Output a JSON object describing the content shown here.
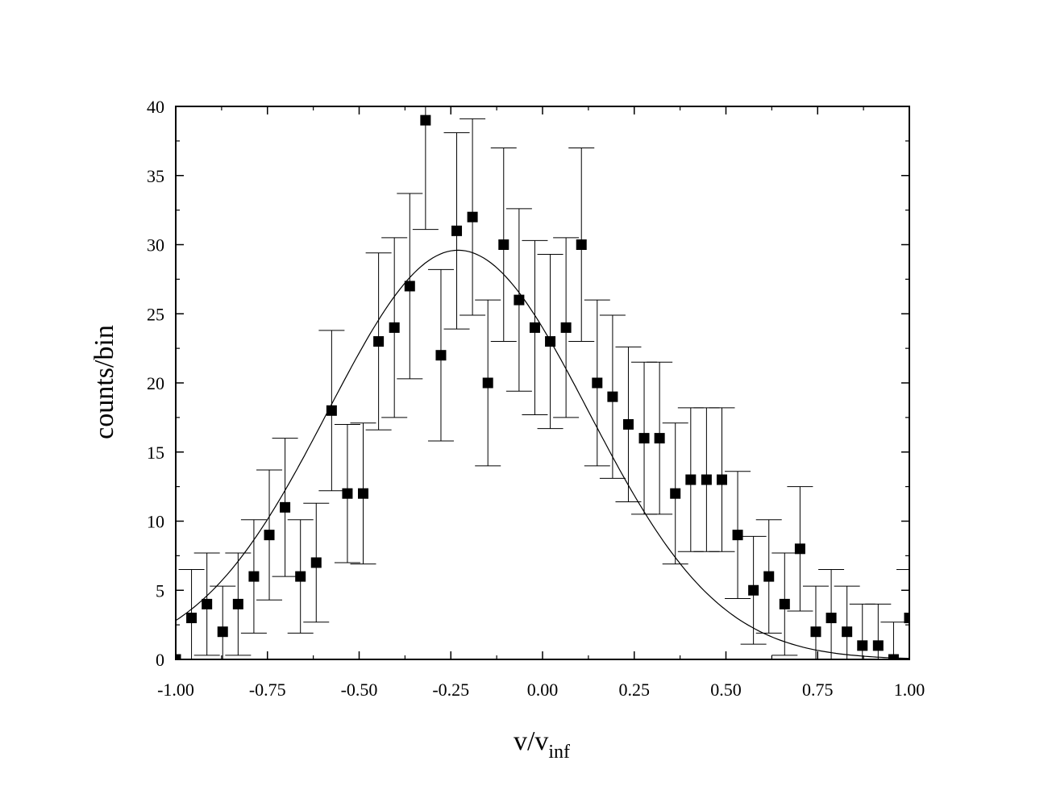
{
  "chart_data": {
    "type": "scatter",
    "xlabel": "v/v",
    "xlabel_subscript": "inf",
    "ylabel": "counts/bin",
    "xlim": [
      -1.0,
      1.0
    ],
    "ylim": [
      0,
      40
    ],
    "x_ticks": [
      "-1.00",
      "-0.75",
      "-0.50",
      "-0.25",
      "0.00",
      "0.25",
      "0.50",
      "0.75",
      "1.00"
    ],
    "y_ticks": [
      "0",
      "5",
      "10",
      "15",
      "20",
      "25",
      "30",
      "35",
      "40"
    ],
    "grid": false,
    "legend": "none",
    "marker": "filled-square",
    "color": "#000000",
    "series": [
      {
        "type": "scatter-with-error-bars",
        "points": [
          {
            "x": -1.0,
            "y": 0,
            "err": 0
          },
          {
            "x": -0.957,
            "y": 3,
            "err": 3.5
          },
          {
            "x": -0.915,
            "y": 4,
            "err": 3.7
          },
          {
            "x": -0.872,
            "y": 2,
            "err": 3.3
          },
          {
            "x": -0.83,
            "y": 4,
            "err": 3.7
          },
          {
            "x": -0.787,
            "y": 6,
            "err": 4.1
          },
          {
            "x": -0.745,
            "y": 9,
            "err": 4.7
          },
          {
            "x": -0.702,
            "y": 11,
            "err": 5.0
          },
          {
            "x": -0.66,
            "y": 6,
            "err": 4.1
          },
          {
            "x": -0.617,
            "y": 7,
            "err": 4.3
          },
          {
            "x": -0.575,
            "y": 18,
            "err": 5.8
          },
          {
            "x": -0.532,
            "y": 12,
            "err": 5.0
          },
          {
            "x": -0.489,
            "y": 12,
            "err": 5.1
          },
          {
            "x": -0.447,
            "y": 23,
            "err": 6.4
          },
          {
            "x": -0.404,
            "y": 24,
            "err": 6.5
          },
          {
            "x": -0.362,
            "y": 27,
            "err": 6.7
          },
          {
            "x": -0.319,
            "y": 39,
            "err": 7.9
          },
          {
            "x": -0.277,
            "y": 22,
            "err": 6.2
          },
          {
            "x": -0.234,
            "y": 31,
            "err": 7.1
          },
          {
            "x": -0.191,
            "y": 32,
            "err": 7.1
          },
          {
            "x": -0.149,
            "y": 20,
            "err": 6.0
          },
          {
            "x": -0.106,
            "y": 30,
            "err": 7.0
          },
          {
            "x": -0.064,
            "y": 26,
            "err": 6.6
          },
          {
            "x": -0.021,
            "y": 24,
            "err": 6.3
          },
          {
            "x": 0.021,
            "y": 23,
            "err": 6.3
          },
          {
            "x": 0.064,
            "y": 24,
            "err": 6.5
          },
          {
            "x": 0.106,
            "y": 30,
            "err": 7.0
          },
          {
            "x": 0.149,
            "y": 20,
            "err": 6.0
          },
          {
            "x": 0.191,
            "y": 19,
            "err": 5.9
          },
          {
            "x": 0.234,
            "y": 17,
            "err": 5.6
          },
          {
            "x": 0.277,
            "y": 16,
            "err": 5.5
          },
          {
            "x": 0.319,
            "y": 16,
            "err": 5.5
          },
          {
            "x": 0.362,
            "y": 12,
            "err": 5.1
          },
          {
            "x": 0.404,
            "y": 13,
            "err": 5.2
          },
          {
            "x": 0.447,
            "y": 13,
            "err": 5.2
          },
          {
            "x": 0.489,
            "y": 13,
            "err": 5.2
          },
          {
            "x": 0.532,
            "y": 9,
            "err": 4.6
          },
          {
            "x": 0.575,
            "y": 5,
            "err": 3.9
          },
          {
            "x": 0.617,
            "y": 6,
            "err": 4.1
          },
          {
            "x": 0.66,
            "y": 4,
            "err": 3.7
          },
          {
            "x": 0.702,
            "y": 8,
            "err": 4.5
          },
          {
            "x": 0.745,
            "y": 2,
            "err": 3.3
          },
          {
            "x": 0.787,
            "y": 3,
            "err": 3.5
          },
          {
            "x": 0.83,
            "y": 2,
            "err": 3.3
          },
          {
            "x": 0.872,
            "y": 1,
            "err": 3.0
          },
          {
            "x": 0.915,
            "y": 1,
            "err": 3.0
          },
          {
            "x": 0.957,
            "y": 0,
            "err": 2.7
          },
          {
            "x": 1.0,
            "y": 3,
            "err": 3.5
          }
        ]
      },
      {
        "type": "line",
        "fit": "gaussian",
        "amplitude": 29.6,
        "center": -0.23,
        "sigma": 0.355
      }
    ]
  }
}
